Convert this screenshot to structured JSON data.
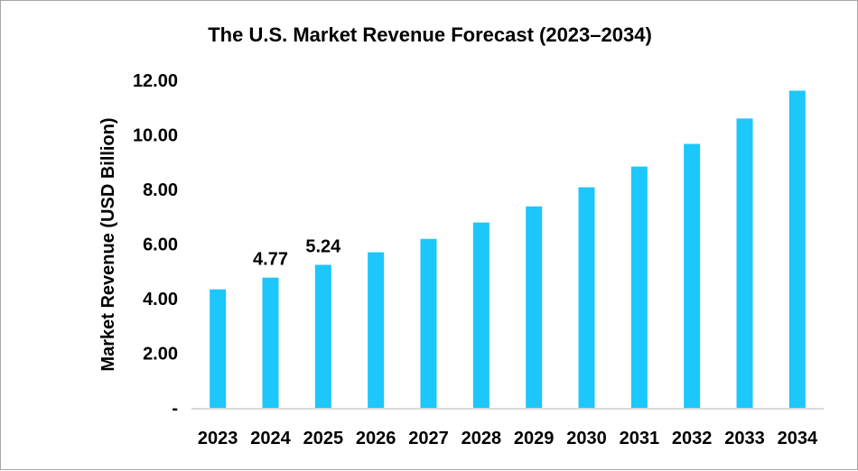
{
  "chart_data": {
    "type": "bar",
    "title": "The U.S. Market Revenue Forecast (2023–2034)",
    "xlabel": "",
    "ylabel": "Market Revenue (USD Billion)",
    "ylim": [
      0,
      12
    ],
    "yticks": [
      "-",
      "2.00",
      "4.00",
      "6.00",
      "8.00",
      "10.00",
      "12.00"
    ],
    "categories": [
      "2023",
      "2024",
      "2025",
      "2026",
      "2027",
      "2028",
      "2029",
      "2030",
      "2031",
      "2032",
      "2033",
      "2034"
    ],
    "values": [
      4.34,
      4.77,
      5.24,
      5.7,
      6.19,
      6.79,
      7.38,
      8.08,
      8.84,
      9.67,
      10.6,
      11.62
    ],
    "data_labels": {
      "1": "4.77",
      "2": "5.24"
    },
    "grid": false,
    "legend": "none",
    "colors": {
      "bar": "#1CC7FB",
      "axis": "#d9d9d9"
    }
  }
}
